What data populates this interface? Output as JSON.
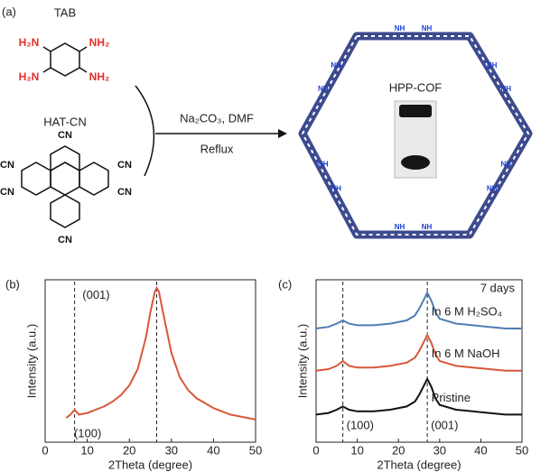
{
  "scheme": {
    "panel_label": "(a)",
    "monomer1": "TAB",
    "monomer2": "HAT-CN",
    "tab_groups": [
      "H₂N",
      "NH₂",
      "H₂N",
      "NH₂"
    ],
    "hatcn_groups": [
      "CN",
      "CN",
      "CN",
      "CN",
      "CN",
      "CN"
    ],
    "conditions": "Na₂CO₃, DMF",
    "conditions2": "Reflux",
    "product": "HPP-COF",
    "linker_labels": [
      "NH",
      "NH",
      "NH",
      "NH",
      "NH",
      "NH",
      "NH",
      "NH",
      "NH",
      "NH",
      "NH",
      "NH"
    ]
  },
  "chart_data": [
    {
      "type": "line",
      "panel_label": "(b)",
      "xlabel": "2Theta (degree)",
      "ylabel": "Intensity (a.u.)",
      "x": [
        5,
        6,
        7,
        8,
        10,
        12,
        14,
        16,
        18,
        20,
        22,
        24,
        25,
        26,
        26.5,
        27,
        28,
        30,
        32,
        34,
        36,
        38,
        40,
        42,
        44,
        46,
        48,
        50
      ],
      "series": [
        {
          "color": "#d9573a",
          "values": [
            0.15,
            0.17,
            0.2,
            0.17,
            0.18,
            0.2,
            0.22,
            0.25,
            0.29,
            0.35,
            0.45,
            0.65,
            0.8,
            0.92,
            0.95,
            0.93,
            0.8,
            0.55,
            0.4,
            0.32,
            0.27,
            0.24,
            0.21,
            0.19,
            0.17,
            0.16,
            0.15,
            0.14
          ]
        }
      ],
      "xlim": [
        0,
        50
      ],
      "xticks": [
        0,
        10,
        20,
        30,
        40,
        50
      ],
      "ylim": [
        0,
        1
      ],
      "reference_x": [
        7,
        26.5
      ],
      "annotations": [
        "(001)",
        "(100)"
      ]
    },
    {
      "type": "line",
      "panel_label": "(c)",
      "xlabel": "2Theta (degree)",
      "ylabel": "Intensity (a.u.)",
      "x": [
        0,
        3,
        5,
        6.5,
        8,
        10,
        14,
        18,
        22,
        24,
        25,
        26,
        27,
        28,
        29,
        30,
        34,
        38,
        42,
        46,
        50
      ],
      "series": [
        {
          "name": "In 6 M H₂SO₄",
          "color": "#4f7db3",
          "values": [
            0.7,
            0.71,
            0.73,
            0.75,
            0.73,
            0.72,
            0.72,
            0.73,
            0.75,
            0.78,
            0.82,
            0.87,
            0.92,
            0.87,
            0.8,
            0.76,
            0.73,
            0.72,
            0.71,
            0.7,
            0.7
          ]
        },
        {
          "name": "In 6 M NaOH",
          "color": "#d9573a",
          "values": [
            0.44,
            0.45,
            0.47,
            0.5,
            0.47,
            0.46,
            0.46,
            0.47,
            0.49,
            0.52,
            0.56,
            0.61,
            0.66,
            0.61,
            0.54,
            0.5,
            0.47,
            0.46,
            0.45,
            0.44,
            0.44
          ]
        },
        {
          "name": "Pristine",
          "color": "#111111",
          "values": [
            0.17,
            0.18,
            0.2,
            0.22,
            0.2,
            0.19,
            0.19,
            0.2,
            0.22,
            0.25,
            0.29,
            0.34,
            0.39,
            0.34,
            0.27,
            0.23,
            0.2,
            0.19,
            0.18,
            0.17,
            0.17
          ]
        }
      ],
      "xlim": [
        0,
        50
      ],
      "xticks": [
        0,
        10,
        20,
        30,
        40,
        50
      ],
      "ylim": [
        0,
        1
      ],
      "reference_x": [
        6.5,
        27
      ],
      "annotations": [
        "7 days",
        "(100)",
        "(001)"
      ]
    }
  ]
}
